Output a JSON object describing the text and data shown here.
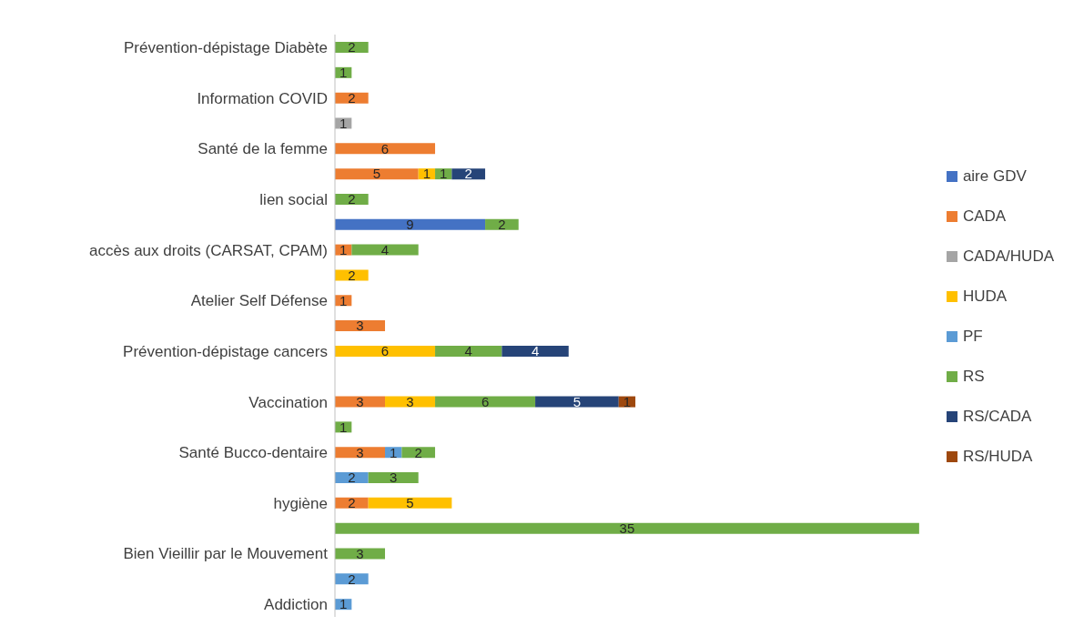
{
  "chart_data": {
    "type": "bar",
    "orientation": "horizontal",
    "stacked": true,
    "data_labels": true,
    "legend": "right",
    "categories": [
      "Prévention-dépistage Diabète",
      null,
      "Information COVID",
      null,
      "Santé de la femme",
      null,
      "lien social",
      null,
      "accès aux droits (CARSAT, CPAM)",
      null,
      "Atelier Self Défense",
      null,
      "Prévention-dépistage cancers",
      null,
      "Vaccination",
      null,
      "Santé Bucco-dentaire",
      null,
      "hygiène",
      null,
      "Bien Vieillir par le Mouvement",
      null,
      "Addiction"
    ],
    "series": [
      {
        "name": "aire GDV",
        "color": "#4472c4",
        "values": [
          null,
          null,
          null,
          null,
          null,
          null,
          null,
          9,
          null,
          null,
          null,
          null,
          null,
          null,
          null,
          null,
          null,
          null,
          null,
          null,
          null,
          null,
          null
        ]
      },
      {
        "name": "CADA",
        "color": "#ed7d31",
        "values": [
          null,
          null,
          2,
          null,
          6,
          5,
          null,
          null,
          1,
          null,
          1,
          3,
          null,
          null,
          3,
          null,
          3,
          null,
          2,
          null,
          null,
          null,
          null
        ]
      },
      {
        "name": "CADA/HUDA",
        "color": "#a5a5a5",
        "values": [
          null,
          null,
          null,
          1,
          null,
          null,
          null,
          null,
          null,
          null,
          null,
          null,
          null,
          null,
          null,
          null,
          null,
          null,
          null,
          null,
          null,
          null,
          null
        ]
      },
      {
        "name": "HUDA",
        "color": "#ffc000",
        "values": [
          null,
          null,
          null,
          null,
          null,
          1,
          null,
          null,
          null,
          2,
          null,
          null,
          6,
          null,
          3,
          null,
          null,
          null,
          5,
          null,
          null,
          null,
          null
        ]
      },
      {
        "name": "PF",
        "color": "#5b9bd5",
        "values": [
          null,
          null,
          null,
          null,
          null,
          null,
          null,
          null,
          null,
          null,
          null,
          null,
          null,
          null,
          null,
          null,
          1,
          2,
          null,
          null,
          null,
          2,
          1
        ]
      },
      {
        "name": "RS",
        "color": "#70ad47",
        "values": [
          2,
          1,
          null,
          null,
          null,
          1,
          2,
          2,
          4,
          null,
          null,
          null,
          4,
          null,
          6,
          1,
          2,
          3,
          null,
          35,
          3,
          null,
          null
        ]
      },
      {
        "name": "RS/CADA",
        "color": "#264478",
        "values": [
          null,
          null,
          null,
          null,
          null,
          2,
          null,
          null,
          null,
          null,
          null,
          null,
          4,
          null,
          5,
          null,
          null,
          null,
          null,
          null,
          null,
          null,
          null
        ]
      },
      {
        "name": "RS/HUDA",
        "color": "#9e480e",
        "values": [
          null,
          null,
          null,
          null,
          null,
          null,
          null,
          null,
          null,
          null,
          null,
          null,
          null,
          null,
          1,
          null,
          null,
          null,
          null,
          null,
          null,
          null,
          null
        ]
      }
    ]
  }
}
